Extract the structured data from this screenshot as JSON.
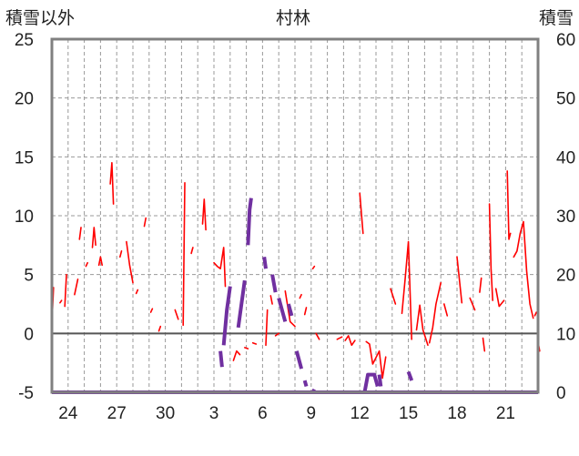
{
  "chart_data": {
    "type": "line",
    "title": "村林",
    "left_axis": {
      "label": "積雪以外",
      "min": -5,
      "max": 25,
      "ticks": [
        "-5",
        "0",
        "5",
        "10",
        "15",
        "20",
        "25"
      ]
    },
    "right_axis": {
      "label": "積雪",
      "min": 0,
      "max": 60,
      "ticks": [
        "0",
        "10",
        "20",
        "30",
        "40",
        "50",
        "60"
      ]
    },
    "x_axis": {
      "min": 0,
      "max": 30,
      "ticks": [
        {
          "x": 1,
          "label": "24"
        },
        {
          "x": 4,
          "label": "27"
        },
        {
          "x": 7,
          "label": "30"
        },
        {
          "x": 10,
          "label": "3"
        },
        {
          "x": 13,
          "label": "6"
        },
        {
          "x": 16,
          "label": "9"
        },
        {
          "x": 19,
          "label": "12"
        },
        {
          "x": 22,
          "label": "15"
        },
        {
          "x": 25,
          "label": "18"
        },
        {
          "x": 28,
          "label": "21"
        }
      ]
    },
    "grid": true,
    "colors": {
      "temperature": "#ff0000",
      "snow": "#7030a0",
      "zero_line": "#555555",
      "frame": "#808080",
      "grid": "#999999"
    },
    "series": [
      {
        "axis": "left",
        "color": "#ff0000",
        "segments": [
          [
            [
              0.0,
              0.8
            ],
            [
              0.1,
              3.9
            ]
          ],
          [
            [
              0.5,
              2.6
            ],
            [
              0.6,
              2.8
            ]
          ],
          [
            [
              0.8,
              2.3
            ],
            [
              0.9,
              5.0
            ]
          ],
          [
            [
              1.4,
              3.3
            ],
            [
              1.6,
              4.6
            ]
          ],
          [
            [
              1.7,
              8.0
            ],
            [
              1.8,
              9.0
            ]
          ],
          [
            [
              2.1,
              5.7
            ],
            [
              2.2,
              6.0
            ]
          ],
          [
            [
              2.5,
              7.3
            ],
            [
              2.6,
              9.0
            ],
            [
              2.7,
              7.5
            ]
          ],
          [
            [
              2.9,
              5.8
            ],
            [
              3.0,
              6.5
            ],
            [
              3.1,
              5.8
            ]
          ],
          [
            [
              3.6,
              12.7
            ],
            [
              3.7,
              14.5
            ],
            [
              3.8,
              11.0
            ]
          ],
          [
            [
              4.2,
              6.5
            ],
            [
              4.3,
              7.0
            ]
          ],
          [
            [
              4.6,
              7.8
            ],
            [
              4.8,
              5.8
            ],
            [
              5.0,
              4.3
            ]
          ],
          [
            [
              5.2,
              3.4
            ],
            [
              5.3,
              3.7
            ]
          ],
          [
            [
              5.7,
              9.1
            ],
            [
              5.8,
              9.8
            ]
          ],
          [
            [
              6.1,
              1.8
            ],
            [
              6.2,
              2.1
            ]
          ],
          [
            [
              6.6,
              0.2
            ],
            [
              6.7,
              0.6
            ]
          ],
          [
            [
              7.6,
              2.0
            ],
            [
              7.8,
              1.2
            ]
          ],
          [
            [
              8.1,
              0.7
            ],
            [
              8.2,
              12.8
            ]
          ],
          [
            [
              8.6,
              6.8
            ],
            [
              8.7,
              7.3
            ]
          ],
          [
            [
              9.3,
              9.3
            ],
            [
              9.4,
              11.4
            ],
            [
              9.5,
              8.8
            ]
          ],
          [
            [
              10.0,
              6.0
            ],
            [
              10.2,
              5.7
            ],
            [
              10.4,
              5.5
            ],
            [
              10.6,
              7.3
            ],
            [
              10.7,
              4.0
            ]
          ],
          [
            [
              11.2,
              -2.3
            ],
            [
              11.4,
              -1.5
            ],
            [
              11.6,
              -1.8
            ]
          ],
          [
            [
              11.9,
              -1.2
            ],
            [
              12.1,
              -1.3
            ]
          ],
          [
            [
              12.4,
              -0.8
            ],
            [
              12.6,
              -0.9
            ]
          ],
          [
            [
              13.2,
              -1.0
            ],
            [
              13.3,
              2.0
            ]
          ],
          [
            [
              13.5,
              3.2
            ],
            [
              13.6,
              2.5
            ]
          ],
          [
            [
              13.8,
              -0.2
            ],
            [
              14.0,
              0.0
            ]
          ],
          [
            [
              14.4,
              3.6
            ],
            [
              14.7,
              1.0
            ],
            [
              15.0,
              0.6
            ]
          ],
          [
            [
              15.3,
              3.0
            ],
            [
              15.4,
              3.3
            ]
          ],
          [
            [
              15.6,
              1.6
            ],
            [
              15.7,
              2.2
            ]
          ],
          [
            [
              16.1,
              5.5
            ],
            [
              16.2,
              5.7
            ]
          ],
          [
            [
              16.3,
              0.0
            ],
            [
              16.5,
              -0.5
            ]
          ],
          [
            [
              17.6,
              -0.5
            ],
            [
              17.9,
              -0.3
            ]
          ],
          [
            [
              18.1,
              -0.6
            ],
            [
              18.3,
              -0.2
            ],
            [
              18.5,
              -1.0
            ],
            [
              18.7,
              -0.6
            ]
          ],
          [
            [
              19.0,
              11.9
            ],
            [
              19.2,
              8.5
            ]
          ],
          [
            [
              19.4,
              -0.7
            ],
            [
              19.6,
              -0.9
            ],
            [
              19.8,
              -2.6
            ],
            [
              20.2,
              -1.5
            ],
            [
              20.4,
              -3.8
            ],
            [
              20.6,
              -2.0
            ]
          ],
          [
            [
              20.9,
              3.8
            ],
            [
              21.2,
              2.5
            ]
          ],
          [
            [
              21.6,
              1.7
            ],
            [
              21.8,
              4.6
            ],
            [
              22.0,
              7.8
            ],
            [
              22.2,
              -0.5
            ]
          ],
          [
            [
              22.5,
              0.3
            ],
            [
              22.7,
              2.4
            ],
            [
              22.9,
              0.3
            ],
            [
              23.2,
              -1.0
            ]
          ],
          [
            [
              23.3,
              -0.8
            ],
            [
              23.5,
              0.5
            ],
            [
              23.7,
              2.5
            ],
            [
              24.0,
              4.3
            ]
          ],
          [
            [
              24.2,
              2.5
            ],
            [
              24.4,
              1.5
            ]
          ],
          [
            [
              25.0,
              6.5
            ],
            [
              25.3,
              2.6
            ]
          ],
          [
            [
              25.8,
              3.0
            ],
            [
              26.1,
              2.0
            ]
          ],
          [
            [
              26.4,
              3.5
            ],
            [
              26.5,
              4.7
            ]
          ],
          [
            [
              26.6,
              -0.4
            ],
            [
              26.7,
              -1.5
            ]
          ],
          [
            [
              27.0,
              11.0
            ],
            [
              27.1,
              5.5
            ],
            [
              27.2,
              2.8
            ]
          ],
          [
            [
              27.4,
              3.8
            ],
            [
              27.6,
              2.3
            ],
            [
              27.9,
              2.8
            ]
          ],
          [
            [
              28.1,
              13.8
            ],
            [
              28.2,
              8.0
            ],
            [
              28.3,
              8.5
            ]
          ],
          [
            [
              28.5,
              6.5
            ],
            [
              28.7,
              7.0
            ],
            [
              28.9,
              8.5
            ],
            [
              29.1,
              9.5
            ],
            [
              29.3,
              5.3
            ],
            [
              29.5,
              2.5
            ],
            [
              29.7,
              1.3
            ]
          ],
          [
            [
              29.8,
              1.5
            ],
            [
              29.9,
              1.8
            ]
          ],
          [
            [
              30.0,
              -0.7
            ],
            [
              30.1,
              -1.5
            ]
          ]
        ]
      },
      {
        "axis": "right",
        "color": "#7030a0",
        "segments": [
          [
            [
              0.0,
              0.0
            ],
            [
              30.0,
              0.0
            ]
          ],
          [
            [
              10.4,
              7.0
            ],
            [
              10.5,
              4.3
            ]
          ],
          [
            [
              10.6,
              8.0
            ],
            [
              10.8,
              14.0
            ],
            [
              11.0,
              18.0
            ]
          ],
          [
            [
              11.5,
              11.0
            ],
            [
              11.9,
              19.0
            ]
          ],
          [
            [
              12.1,
              25.0
            ],
            [
              12.2,
              31.0
            ],
            [
              12.3,
              33.0
            ]
          ],
          [
            [
              13.1,
              23.0
            ],
            [
              13.2,
              21.0
            ]
          ],
          [
            [
              13.6,
              20.0
            ],
            [
              13.8,
              17.0
            ]
          ],
          [
            [
              14.0,
              16.0
            ],
            [
              14.3,
              13.0
            ],
            [
              14.4,
              12.0
            ]
          ],
          [
            [
              14.6,
              15.0
            ],
            [
              14.8,
              13.0
            ]
          ],
          [
            [
              15.1,
              7.0
            ],
            [
              15.4,
              4.0
            ]
          ],
          [
            [
              15.6,
              2.0
            ],
            [
              15.7,
              1.0
            ]
          ],
          [
            [
              16.1,
              0.0
            ],
            [
              16.2,
              0.5
            ]
          ],
          [
            [
              19.3,
              0.0
            ],
            [
              19.5,
              3.0
            ],
            [
              19.7,
              3.0
            ],
            [
              19.9,
              3.0
            ],
            [
              20.1,
              1.0
            ]
          ],
          [
            [
              20.2,
              3.0
            ],
            [
              20.3,
              1.0
            ]
          ],
          [
            [
              22.0,
              3.5
            ],
            [
              22.2,
              2.0
            ]
          ]
        ]
      }
    ]
  }
}
